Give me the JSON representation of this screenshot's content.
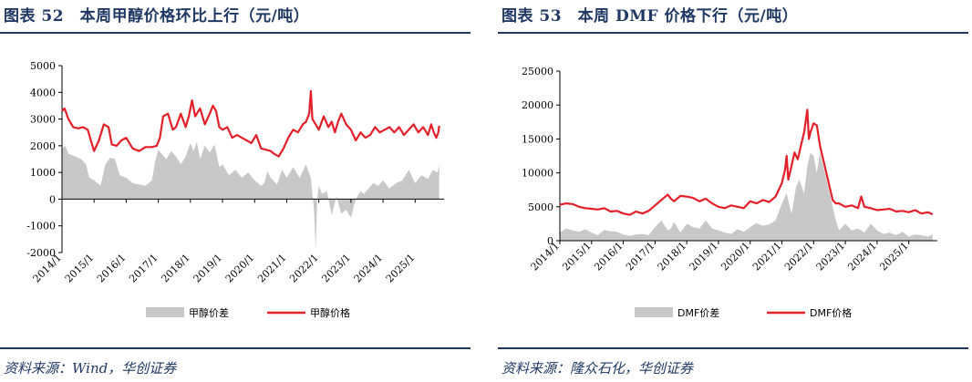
{
  "panels": [
    {
      "title": "图表 52　本周甲醇价格环比上行（元/吨）",
      "source": "资料来源：Wind，华创证券"
    },
    {
      "title": "图表 53　本周 DMF 价格下行（元/吨）",
      "source": "资料来源：隆众石化，华创证券"
    }
  ],
  "chart_data": [
    {
      "type": "line",
      "title": "",
      "xlabel": "",
      "ylabel": "",
      "ylim": [
        -2000,
        5000
      ],
      "yticks": [
        -2000,
        -1000,
        0,
        1000,
        2000,
        3000,
        4000,
        5000
      ],
      "yticklabels": [
        "-2000",
        "-1000",
        "0",
        "1000",
        "2000",
        "3000",
        "4000",
        "5000"
      ],
      "xlim": [
        2014.0,
        2025.9
      ],
      "xticks": [
        2014,
        2015,
        2016,
        2017,
        2018,
        2019,
        2020,
        2021,
        2022,
        2023,
        2024,
        2025
      ],
      "xticklabels": [
        "2014/1",
        "2015/1",
        "2016/1",
        "2017/1",
        "2018/1",
        "2019/1",
        "2020/1",
        "2021/1",
        "2022/1",
        "2023/1",
        "2024/1",
        "2025/1"
      ],
      "grid": false,
      "legend_position": "bottom-center",
      "series": [
        {
          "name": "甲醇价差",
          "kind": "area",
          "color": "#c8c8c8",
          "x": [
            2014.0,
            2014.1,
            2014.2,
            2014.4,
            2014.6,
            2014.75,
            2014.85,
            2015.0,
            2015.2,
            2015.35,
            2015.5,
            2015.65,
            2015.8,
            2016.0,
            2016.2,
            2016.4,
            2016.6,
            2016.8,
            2016.9,
            2017.0,
            2017.1,
            2017.25,
            2017.4,
            2017.55,
            2017.7,
            2017.85,
            2018.0,
            2018.1,
            2018.2,
            2018.3,
            2018.45,
            2018.6,
            2018.75,
            2018.9,
            2019.0,
            2019.2,
            2019.4,
            2019.6,
            2019.8,
            2020.0,
            2020.2,
            2020.3,
            2020.4,
            2020.5,
            2020.7,
            2020.85,
            2021.0,
            2021.2,
            2021.4,
            2021.6,
            2021.75,
            2021.8,
            2021.85,
            2021.9,
            2021.95,
            2022.0,
            2022.1,
            2022.25,
            2022.4,
            2022.55,
            2022.7,
            2022.85,
            2023.0,
            2023.1,
            2023.2,
            2023.3,
            2023.4,
            2023.55,
            2023.7,
            2023.85,
            2024.0,
            2024.2,
            2024.4,
            2024.6,
            2024.8,
            2025.0,
            2025.2,
            2025.4,
            2025.55,
            2025.7,
            2025.75
          ],
          "values": [
            1900,
            2000,
            1700,
            1600,
            1500,
            1300,
            800,
            700,
            500,
            1300,
            1550,
            1500,
            900,
            800,
            600,
            550,
            500,
            700,
            1400,
            1850,
            1700,
            1500,
            1800,
            1600,
            1300,
            1600,
            2100,
            1800,
            2150,
            1500,
            2000,
            1750,
            2050,
            1200,
            1300,
            900,
            1100,
            800,
            1000,
            700,
            500,
            600,
            1050,
            800,
            550,
            1100,
            800,
            1200,
            800,
            1300,
            800,
            200,
            -400,
            -1900,
            0,
            500,
            200,
            300,
            -600,
            100,
            -550,
            -400,
            -700,
            -200,
            100,
            300,
            200,
            400,
            600,
            500,
            700,
            400,
            600,
            700,
            1100,
            600,
            900,
            750,
            1100,
            1000,
            1300
          ]
        },
        {
          "name": "甲醇价格",
          "kind": "line",
          "color": "#e3202a",
          "x": [
            2014.0,
            2014.08,
            2014.2,
            2014.35,
            2014.5,
            2014.65,
            2014.8,
            2015.0,
            2015.15,
            2015.3,
            2015.45,
            2015.55,
            2015.7,
            2015.85,
            2016.0,
            2016.2,
            2016.4,
            2016.6,
            2016.8,
            2016.95,
            2017.05,
            2017.15,
            2017.3,
            2017.45,
            2017.55,
            2017.7,
            2017.85,
            2017.95,
            2018.05,
            2018.15,
            2018.3,
            2018.45,
            2018.6,
            2018.7,
            2018.8,
            2018.9,
            2019.0,
            2019.15,
            2019.3,
            2019.45,
            2019.6,
            2019.75,
            2019.9,
            2020.05,
            2020.2,
            2020.35,
            2020.5,
            2020.6,
            2020.75,
            2020.9,
            2021.05,
            2021.2,
            2021.35,
            2021.5,
            2021.6,
            2021.7,
            2021.75,
            2021.8,
            2021.9,
            2022.0,
            2022.15,
            2022.3,
            2022.4,
            2022.5,
            2022.6,
            2022.7,
            2022.85,
            2023.0,
            2023.15,
            2023.3,
            2023.45,
            2023.6,
            2023.75,
            2023.9,
            2024.05,
            2024.2,
            2024.35,
            2024.5,
            2024.65,
            2024.8,
            2024.95,
            2025.1,
            2025.25,
            2025.4,
            2025.5,
            2025.58,
            2025.66,
            2025.72,
            2025.75
          ],
          "values": [
            3300,
            3400,
            3000,
            2700,
            2650,
            2700,
            2600,
            1800,
            2200,
            2800,
            2700,
            2050,
            2000,
            2200,
            2300,
            1900,
            1800,
            1950,
            1950,
            2000,
            2300,
            3100,
            3200,
            2600,
            2700,
            3200,
            2700,
            3100,
            3700,
            3100,
            3400,
            2800,
            3200,
            3500,
            3300,
            2700,
            2600,
            2700,
            2300,
            2400,
            2300,
            2200,
            2100,
            2400,
            1900,
            1850,
            1800,
            1700,
            1600,
            1900,
            2300,
            2600,
            2500,
            2800,
            2900,
            3200,
            4050,
            3000,
            2800,
            2600,
            3100,
            2700,
            2900,
            2500,
            2900,
            3200,
            2800,
            2600,
            2200,
            2500,
            2300,
            2400,
            2700,
            2500,
            2600,
            2700,
            2500,
            2700,
            2400,
            2600,
            2800,
            2500,
            2700,
            2400,
            2800,
            2500,
            2300,
            2500,
            2750
          ]
        }
      ]
    },
    {
      "type": "line",
      "title": "",
      "xlabel": "",
      "ylabel": "",
      "ylim": [
        0,
        25000
      ],
      "yticks": [
        0,
        5000,
        10000,
        15000,
        20000,
        25000
      ],
      "yticklabels": [
        "0",
        "5000",
        "10000",
        "15000",
        "20000",
        "25000"
      ],
      "xlim": [
        2014.0,
        2025.9
      ],
      "xticks": [
        2014,
        2015,
        2016,
        2017,
        2018,
        2019,
        2020,
        2021,
        2022,
        2023,
        2024,
        2025
      ],
      "xticklabels": [
        "2014/1",
        "2015/1",
        "2016/1",
        "2017/1",
        "2018/1",
        "2019/1",
        "2020/1",
        "2021/1",
        "2022/1",
        "2023/1",
        "2024/1",
        "2025/1"
      ],
      "grid": false,
      "legend_position": "bottom-center",
      "series": [
        {
          "name": "DMF价差",
          "kind": "area",
          "color": "#c8c8c8",
          "x": [
            2014.0,
            2014.2,
            2014.4,
            2014.6,
            2014.8,
            2015.0,
            2015.2,
            2015.4,
            2015.6,
            2015.8,
            2016.0,
            2016.2,
            2016.4,
            2016.6,
            2016.8,
            2017.0,
            2017.2,
            2017.4,
            2017.5,
            2017.6,
            2017.8,
            2018.0,
            2018.2,
            2018.4,
            2018.6,
            2018.8,
            2019.0,
            2019.2,
            2019.4,
            2019.6,
            2019.8,
            2020.0,
            2020.2,
            2020.4,
            2020.6,
            2020.8,
            2021.0,
            2021.15,
            2021.3,
            2021.45,
            2021.55,
            2021.7,
            2021.8,
            2021.9,
            2022.0,
            2022.1,
            2022.2,
            2022.35,
            2022.5,
            2022.6,
            2022.7,
            2022.8,
            2023.0,
            2023.2,
            2023.4,
            2023.6,
            2023.8,
            2024.0,
            2024.2,
            2024.4,
            2024.6,
            2024.8,
            2025.0,
            2025.2,
            2025.4,
            2025.6,
            2025.75
          ],
          "values": [
            1200,
            1800,
            1500,
            1300,
            1700,
            1200,
            800,
            1600,
            1400,
            1300,
            900,
            700,
            900,
            1000,
            800,
            2000,
            3000,
            1500,
            1800,
            2800,
            1200,
            2500,
            2000,
            1800,
            3000,
            1800,
            1500,
            1200,
            1000,
            1700,
            1300,
            2000,
            2600,
            2200,
            2400,
            3000,
            5500,
            7000,
            4000,
            8000,
            9000,
            7000,
            11000,
            13000,
            12500,
            10000,
            13000,
            10000,
            7000,
            5000,
            3000,
            1500,
            2500,
            1500,
            1800,
            1200,
            2500,
            1500,
            1000,
            1200,
            800,
            1300,
            600,
            900,
            800,
            600,
            900
          ]
        },
        {
          "name": "DMF价格",
          "kind": "line",
          "color": "#e3202a",
          "x": [
            2014.0,
            2014.2,
            2014.4,
            2014.6,
            2014.8,
            2015.0,
            2015.2,
            2015.4,
            2015.6,
            2015.8,
            2016.0,
            2016.2,
            2016.4,
            2016.6,
            2016.8,
            2017.0,
            2017.2,
            2017.4,
            2017.5,
            2017.6,
            2017.8,
            2018.0,
            2018.2,
            2018.4,
            2018.6,
            2018.8,
            2019.0,
            2019.2,
            2019.4,
            2019.6,
            2019.8,
            2020.0,
            2020.2,
            2020.4,
            2020.6,
            2020.8,
            2021.0,
            2021.1,
            2021.15,
            2021.2,
            2021.3,
            2021.4,
            2021.5,
            2021.6,
            2021.7,
            2021.8,
            2021.85,
            2021.9,
            2022.0,
            2022.1,
            2022.2,
            2022.3,
            2022.4,
            2022.5,
            2022.6,
            2022.7,
            2022.8,
            2023.0,
            2023.2,
            2023.4,
            2023.5,
            2023.6,
            2023.8,
            2024.0,
            2024.2,
            2024.4,
            2024.6,
            2024.8,
            2025.0,
            2025.2,
            2025.4,
            2025.6,
            2025.75
          ],
          "values": [
            5300,
            5500,
            5400,
            5000,
            4800,
            4700,
            4600,
            4800,
            4300,
            4400,
            4000,
            3800,
            4300,
            4000,
            4400,
            5200,
            6000,
            6800,
            6200,
            5800,
            6600,
            6500,
            6300,
            5800,
            6200,
            5500,
            5000,
            4800,
            5200,
            5000,
            4800,
            5800,
            5500,
            6000,
            5700,
            6500,
            8500,
            10500,
            12500,
            9000,
            11000,
            13000,
            12000,
            14000,
            16000,
            19300,
            15000,
            16000,
            17300,
            17000,
            14000,
            12000,
            10000,
            8000,
            6000,
            5500,
            5500,
            5000,
            5200,
            4800,
            6500,
            5000,
            4800,
            4500,
            4600,
            4700,
            4300,
            4400,
            4200,
            4500,
            4000,
            4200,
            3900
          ]
        }
      ]
    }
  ]
}
